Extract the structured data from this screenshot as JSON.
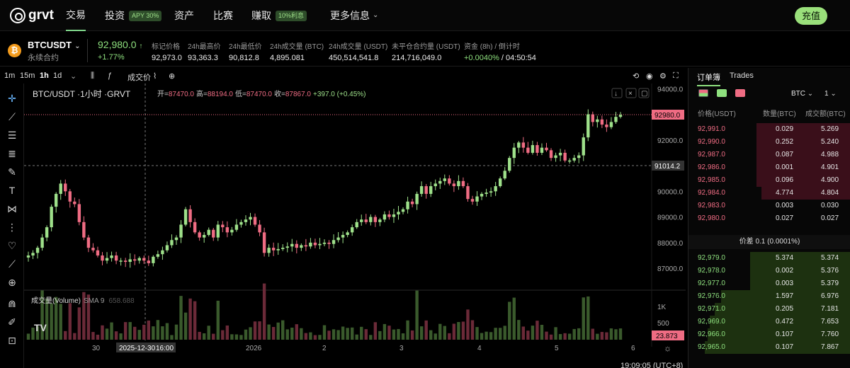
{
  "nav": {
    "logo": "grvt",
    "items": [
      {
        "label": "交易"
      },
      {
        "label": "投资",
        "badge": "APY 30%"
      },
      {
        "label": "资产"
      },
      {
        "label": "比赛"
      },
      {
        "label": "赚取",
        "badge": "10%利息"
      },
      {
        "label": "更多信息"
      }
    ],
    "deposit": "充值"
  },
  "ticker": {
    "symbol": "BTCUSDT",
    "subtitle": "永续合约",
    "coin_icon": "₿",
    "last_price": "92,980.0",
    "last_arrow": "↑",
    "change": "+1.77%",
    "stats": [
      {
        "label": "标记价格",
        "value": "92,973.0"
      },
      {
        "label": "24h最高价",
        "value": "93,363.3"
      },
      {
        "label": "24h最低价",
        "value": "90,812.8"
      },
      {
        "label": "24h成交量 (BTC)",
        "value": "4,895.081"
      },
      {
        "label": "24h成交量 (USDT)",
        "value": "450,514,541.8"
      },
      {
        "label": "未平仓合约量 (USDT)",
        "value": "214,716,049.0"
      },
      {
        "label": "资金 (8h) / 倒计时",
        "value_green": "+0.0040%",
        "value_rest": " / 04:50:54"
      }
    ]
  },
  "toolbar": {
    "intervals": [
      "1m",
      "15m",
      "1h",
      "1d"
    ],
    "active": "1h",
    "price_type": "成交价"
  },
  "chart": {
    "title": "BTC/USDT ·1小时 ·GRVT",
    "ohlc": {
      "o_label": "开=",
      "o": "87470.0",
      "h_label": "高=",
      "h": "88194.0",
      "l_label": "低=",
      "l": "87470.0",
      "c_label": "收=",
      "c": "87867.0",
      "chg": "+397.0 (+0.45%)"
    },
    "volume_title": "成交量(Volume)",
    "sma": "SMA 9",
    "sma_val": "658.688",
    "last_price_tag": "92980.0",
    "cross_price_tag": "91014.2",
    "volume_tag": "23.873",
    "cross_date": "2025-12-30",
    "cross_time": "16:00",
    "up_color": "#9ee08a",
    "down_color": "#ef6c83"
  },
  "chart_data": {
    "type": "candlestick",
    "title": "BTC/USDT ·1小时 ·GRVT",
    "y_ticks": [
      "94000.0",
      "93000.0",
      "92000.0",
      "91000.0",
      "90000.0",
      "89000.0",
      "88000.0",
      "87000.0"
    ],
    "volume_ticks": [
      "1K",
      "500"
    ],
    "x_ticks": [
      "30",
      "2026",
      "2",
      "3",
      "4",
      "5",
      "6"
    ],
    "ylim": [
      86700,
      94200
    ],
    "closes": [
      87500,
      87600,
      87800,
      88200,
      88600,
      89400,
      89900,
      90300,
      90000,
      89600,
      89500,
      88800,
      88200,
      87800,
      87700,
      87500,
      87300,
      87400,
      87500,
      87300,
      87300,
      87250,
      87350,
      87300,
      87400,
      87300,
      87200,
      87450,
      87550,
      87700,
      87900,
      88100,
      88200,
      88700,
      89300,
      88800,
      88400,
      88200,
      88300,
      88500,
      88200,
      88700,
      88600,
      88400,
      88500,
      88700,
      88800,
      88900,
      89000,
      88700,
      88400,
      87600,
      87800,
      87700,
      87750,
      87800,
      87850,
      87950,
      87800,
      87900,
      87850,
      88000,
      87900,
      87950,
      88000,
      87950,
      88100,
      88200,
      88300,
      88400,
      88600,
      88800,
      88900,
      88800,
      89000,
      88800,
      88900,
      89100,
      89000,
      89100,
      89200,
      89300,
      89600,
      89500,
      89900,
      90200,
      89900,
      90200,
      90300,
      90400,
      90500,
      90300,
      90200,
      90400,
      90200,
      89700,
      89600,
      89800,
      89900,
      89950,
      90000,
      90200,
      90500,
      90800,
      91300,
      91700,
      91900,
      91700,
      91500,
      91800,
      91500,
      91700,
      91600,
      91300,
      91400,
      91500,
      91200,
      91200,
      91300,
      91400,
      92100,
      93000,
      92700,
      92800,
      92600,
      92500,
      92700,
      92900,
      92980
    ]
  },
  "orderbook": {
    "tabs": [
      "订单簿",
      "Trades"
    ],
    "asset": "BTC",
    "depth": "1",
    "headers": [
      "价格(USDT)",
      "数量(BTC)",
      "成交额(BTC)"
    ],
    "asks": [
      [
        "92,991.0",
        "0.029",
        "5.269",
        0.58
      ],
      [
        "92,990.0",
        "0.252",
        "5.240",
        0.58
      ],
      [
        "92,987.0",
        "0.087",
        "4.988",
        0.58
      ],
      [
        "92,986.0",
        "0.001",
        "4.901",
        0.58
      ],
      [
        "92,985.0",
        "0.096",
        "4.900",
        0.58
      ],
      [
        "92,984.0",
        "4.774",
        "4.804",
        0.55
      ],
      [
        "92,983.0",
        "0.003",
        "0.030",
        0.0
      ],
      [
        "92,980.0",
        "0.027",
        "0.027",
        0.0
      ]
    ],
    "spread": "价差  0.1 (0.0001%)",
    "bids": [
      [
        "92,979.0",
        "5.374",
        "5.374",
        0.62
      ],
      [
        "92,978.0",
        "0.002",
        "5.376",
        0.62
      ],
      [
        "92,977.0",
        "0.003",
        "5.379",
        0.62
      ],
      [
        "92,976.0",
        "1.597",
        "6.976",
        0.8
      ],
      [
        "92,971.0",
        "0.205",
        "7.181",
        0.84
      ],
      [
        "92,969.0",
        "0.472",
        "7.653",
        0.87
      ],
      [
        "92,966.0",
        "0.107",
        "7.760",
        0.88
      ],
      [
        "92,965.0",
        "0.107",
        "7.867",
        0.9
      ]
    ]
  },
  "status": {
    "time": "19:09:05 (UTC+8)"
  }
}
